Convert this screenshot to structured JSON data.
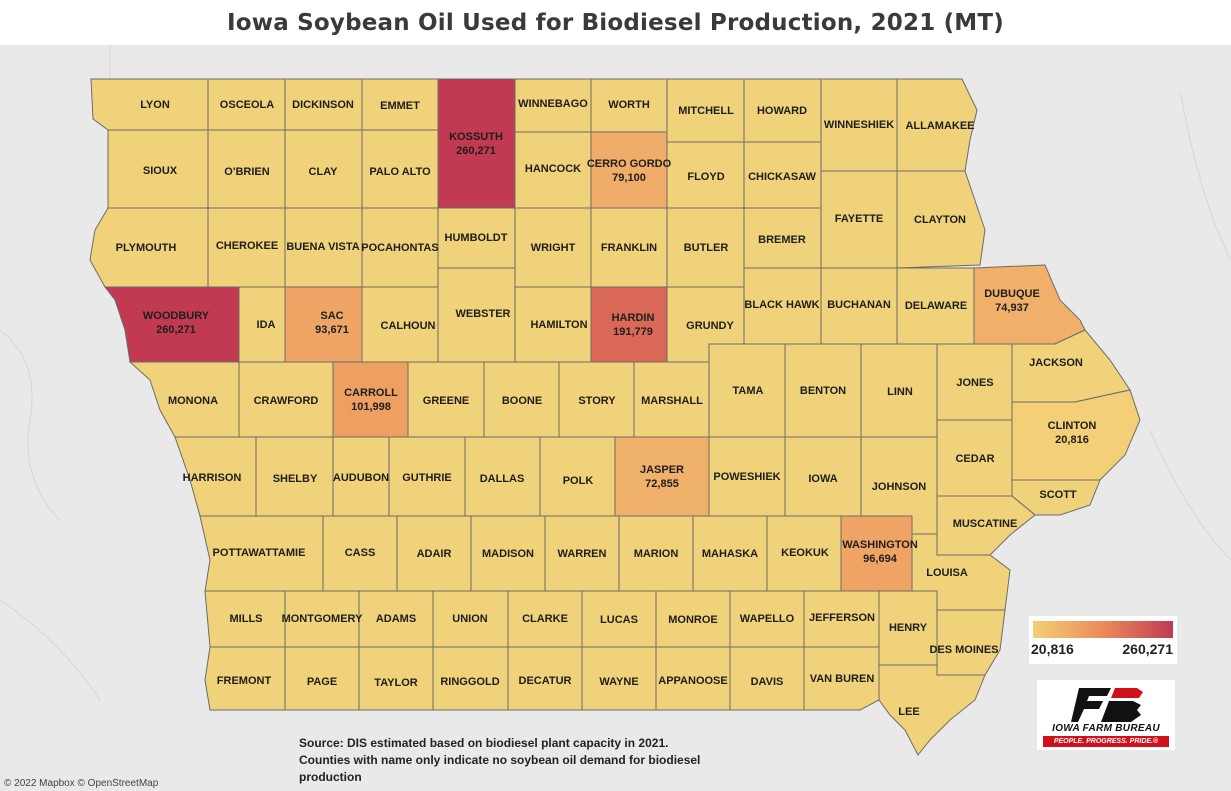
{
  "title": "Iowa Soybean Oil Used for Biodiesel Production, 2021 (MT)",
  "legend": {
    "min_label": "20,816",
    "max_label": "260,271",
    "min": 20816,
    "max": 260271,
    "color_low": "#f3cf77",
    "color_high": "#c13a52"
  },
  "base_color": "#f0d27a",
  "counties": [
    {
      "name": "LYON",
      "value": null
    },
    {
      "name": "OSCEOLA",
      "value": null
    },
    {
      "name": "DICKINSON",
      "value": null
    },
    {
      "name": "EMMET",
      "value": null
    },
    {
      "name": "KOSSUTH",
      "value": 260271,
      "value_label": "260,271"
    },
    {
      "name": "WINNEBAGO",
      "value": null
    },
    {
      "name": "WORTH",
      "value": null
    },
    {
      "name": "MITCHELL",
      "value": null
    },
    {
      "name": "HOWARD",
      "value": null
    },
    {
      "name": "WINNESHIEK",
      "value": null
    },
    {
      "name": "ALLAMAKEE",
      "value": null
    },
    {
      "name": "SIOUX",
      "value": null
    },
    {
      "name": "O'BRIEN",
      "value": null
    },
    {
      "name": "CLAY",
      "value": null
    },
    {
      "name": "PALO ALTO",
      "value": null
    },
    {
      "name": "HANCOCK",
      "value": null
    },
    {
      "name": "CERRO GORDO",
      "value": 79100,
      "value_label": "79,100"
    },
    {
      "name": "FLOYD",
      "value": null
    },
    {
      "name": "CHICKASAW",
      "value": null
    },
    {
      "name": "FAYETTE",
      "value": null
    },
    {
      "name": "CLAYTON",
      "value": null
    },
    {
      "name": "PLYMOUTH",
      "value": null
    },
    {
      "name": "CHEROKEE",
      "value": null
    },
    {
      "name": "BUENA VISTA",
      "value": null
    },
    {
      "name": "POCAHONTAS",
      "value": null
    },
    {
      "name": "HUMBOLDT",
      "value": null
    },
    {
      "name": "WRIGHT",
      "value": null
    },
    {
      "name": "FRANKLIN",
      "value": null
    },
    {
      "name": "BUTLER",
      "value": null
    },
    {
      "name": "BREMER",
      "value": null
    },
    {
      "name": "BLACK HAWK",
      "value": null
    },
    {
      "name": "BUCHANAN",
      "value": null
    },
    {
      "name": "DELAWARE",
      "value": null
    },
    {
      "name": "DUBUQUE",
      "value": 74937,
      "value_label": "74,937"
    },
    {
      "name": "WOODBURY",
      "value": 260271,
      "value_label": "260,271"
    },
    {
      "name": "IDA",
      "value": null
    },
    {
      "name": "SAC",
      "value": 93671,
      "value_label": "93,671"
    },
    {
      "name": "CALHOUN",
      "value": null
    },
    {
      "name": "WEBSTER",
      "value": null
    },
    {
      "name": "HAMILTON",
      "value": null
    },
    {
      "name": "HARDIN",
      "value": 191779,
      "value_label": "191,779"
    },
    {
      "name": "GRUNDY",
      "value": null
    },
    {
      "name": "MONONA",
      "value": null
    },
    {
      "name": "CRAWFORD",
      "value": null
    },
    {
      "name": "CARROLL",
      "value": 101998,
      "value_label": "101,998"
    },
    {
      "name": "GREENE",
      "value": null
    },
    {
      "name": "BOONE",
      "value": null
    },
    {
      "name": "STORY",
      "value": null
    },
    {
      "name": "MARSHALL",
      "value": null
    },
    {
      "name": "TAMA",
      "value": null
    },
    {
      "name": "BENTON",
      "value": null
    },
    {
      "name": "LINN",
      "value": null
    },
    {
      "name": "JONES",
      "value": null
    },
    {
      "name": "JACKSON",
      "value": null
    },
    {
      "name": "CLINTON",
      "value": 20816,
      "value_label": "20,816"
    },
    {
      "name": "HARRISON",
      "value": null
    },
    {
      "name": "SHELBY",
      "value": null
    },
    {
      "name": "AUDUBON",
      "value": null
    },
    {
      "name": "GUTHRIE",
      "value": null
    },
    {
      "name": "DALLAS",
      "value": null
    },
    {
      "name": "POLK",
      "value": null
    },
    {
      "name": "JASPER",
      "value": 72855,
      "value_label": "72,855"
    },
    {
      "name": "POWESHIEK",
      "value": null
    },
    {
      "name": "IOWA",
      "value": null
    },
    {
      "name": "JOHNSON",
      "value": null
    },
    {
      "name": "CEDAR",
      "value": null
    },
    {
      "name": "SCOTT",
      "value": null
    },
    {
      "name": "MUSCATINE",
      "value": null
    },
    {
      "name": "POTTAWATTAMIE",
      "value": null
    },
    {
      "name": "CASS",
      "value": null
    },
    {
      "name": "ADAIR",
      "value": null
    },
    {
      "name": "MADISON",
      "value": null
    },
    {
      "name": "WARREN",
      "value": null
    },
    {
      "name": "MARION",
      "value": null
    },
    {
      "name": "MAHASKA",
      "value": null
    },
    {
      "name": "KEOKUK",
      "value": null
    },
    {
      "name": "WASHINGTON",
      "value": 96694,
      "value_label": "96,694"
    },
    {
      "name": "LOUISA",
      "value": null
    },
    {
      "name": "MILLS",
      "value": null
    },
    {
      "name": "MONTGOMERY",
      "value": null
    },
    {
      "name": "ADAMS",
      "value": null
    },
    {
      "name": "UNION",
      "value": null
    },
    {
      "name": "CLARKE",
      "value": null
    },
    {
      "name": "LUCAS",
      "value": null
    },
    {
      "name": "MONROE",
      "value": null
    },
    {
      "name": "WAPELLO",
      "value": null
    },
    {
      "name": "JEFFERSON",
      "value": null
    },
    {
      "name": "HENRY",
      "value": null
    },
    {
      "name": "DES MOINES",
      "value": null
    },
    {
      "name": "FREMONT",
      "value": null
    },
    {
      "name": "PAGE",
      "value": null
    },
    {
      "name": "TAYLOR",
      "value": null
    },
    {
      "name": "RINGGOLD",
      "value": null
    },
    {
      "name": "DECATUR",
      "value": null
    },
    {
      "name": "WAYNE",
      "value": null
    },
    {
      "name": "APPANOOSE",
      "value": null
    },
    {
      "name": "DAVIS",
      "value": null
    },
    {
      "name": "VAN BUREN",
      "value": null
    },
    {
      "name": "LEE",
      "value": null
    }
  ],
  "logo": {
    "name": "IOWA FARM BUREAU",
    "tagline": "PEOPLE. PROGRESS. PRIDE.®",
    "mark": "FB"
  },
  "source_note": {
    "line1": "Source: DIS estimated based on biodiesel plant capacity in 2021.",
    "line2": "Counties with name only indicate no soybean oil demand for biodiesel",
    "line3": "production"
  },
  "attribution": "© 2022 Mapbox © OpenStreetMap"
}
